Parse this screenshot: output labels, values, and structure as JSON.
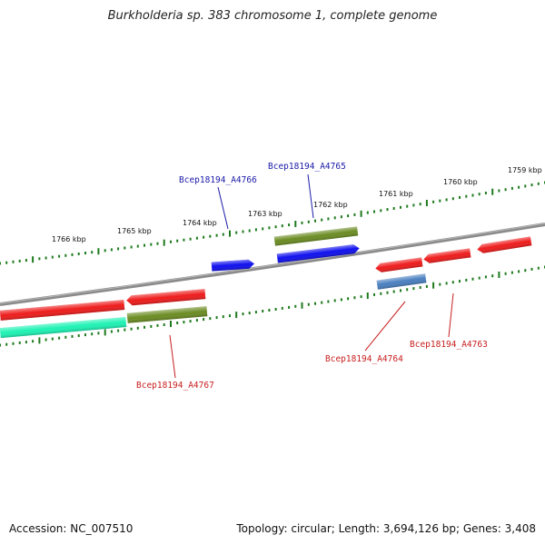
{
  "title": "Burkholderia sp. 383 chromosome 1, complete genome",
  "footer": {
    "accession": "Accession: NC_007510",
    "summary": "Topology: circular; Length: 3,694,126 bp; Genes: 3,408"
  },
  "scale_labels": [
    "1766 kbp",
    "1765 kbp",
    "1764 kbp",
    "1763 kbp",
    "1762 kbp",
    "1761 kbp",
    "1760 kbp",
    "1759 kbp"
  ],
  "colors": {
    "backbone": "#808080",
    "tick": "#1e7a1e",
    "forward_label": "#1a1aa8",
    "reverse_label": "#c81e1e",
    "red": "#ee1c1c",
    "blue": "#1010ee",
    "olive": "#6b8c23",
    "steelblue": "#4a7fbf",
    "aquamarine": "#1ef2b4"
  },
  "gene_labels": {
    "forward": [
      "Bcep18194_A4766",
      "Bcep18194_A4765"
    ],
    "reverse": [
      "Bcep18194_A4767",
      "Bcep18194_A4764",
      "Bcep18194_A4763"
    ]
  }
}
